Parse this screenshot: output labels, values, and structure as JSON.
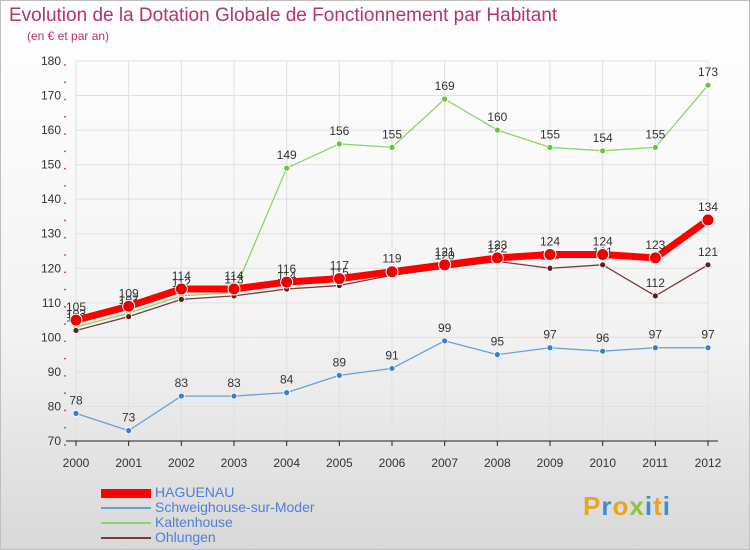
{
  "title": "Evolution de la Dotation Globale de Fonctionnement par Habitant",
  "subtitle": "(en € et par an)",
  "logo": {
    "text": "Proxiti",
    "colors": [
      "#e8a427",
      "#3f8fd0",
      "#e8a427",
      "#8cc63f",
      "#3f8fd0",
      "#e8a427",
      "#3f8fd0"
    ]
  },
  "colors": {
    "title": "#b5336e",
    "axis_text": "#333333",
    "grid": "#e0e0e0",
    "legend_text": "#4f7fd0"
  },
  "chart_data": {
    "type": "line",
    "title": "Evolution de la Dotation Globale de Fonctionnement par Habitant",
    "subtitle": "(en € et par an)",
    "x": [
      "2000",
      "2001",
      "2002",
      "2003",
      "2004",
      "2005",
      "2006",
      "2007",
      "2008",
      "2009",
      "2010",
      "2011",
      "2012"
    ],
    "yticks": [
      70,
      80,
      90,
      100,
      110,
      120,
      130,
      140,
      150,
      160,
      170,
      180
    ],
    "ylim": [
      70,
      180
    ],
    "grid": true,
    "legend_placement": "bottom-left",
    "series": [
      {
        "name": "Schweighouse-sur-Moder",
        "color": "#6a9fd4",
        "marker": "#3b7fc4",
        "width": 1.3,
        "r": 3,
        "values": [
          78,
          73,
          83,
          83,
          84,
          89,
          91,
          99,
          95,
          97,
          96,
          97,
          97
        ],
        "labels": [
          "78",
          "73",
          "83",
          "83",
          "84",
          "89",
          "91",
          "99",
          "95",
          "97",
          "96",
          "97",
          "97"
        ]
      },
      {
        "name": "Kaltenhouse",
        "color": "#8fd46a",
        "marker": "#6cc43b",
        "width": 1.3,
        "r": 3,
        "values": [
          103,
          107,
          112,
          113,
          149,
          156,
          155,
          169,
          160,
          155,
          154,
          155,
          173
        ],
        "labels": [
          "103",
          "107",
          "112",
          "113",
          "149",
          "156",
          "155",
          "169",
          "160",
          "155",
          "154",
          "155",
          "173"
        ]
      },
      {
        "name": "Ohlungen",
        "color": "#7a3a3a",
        "marker": "#5a1f1f",
        "width": 1.3,
        "r": 3,
        "values": [
          102,
          106,
          111,
          112,
          114,
          115,
          118,
          120,
          122,
          120,
          121,
          112,
          121
        ],
        "labels": [
          "102",
          "106",
          "",
          "",
          "114",
          "115",
          "",
          "120",
          "122",
          "120",
          "121",
          "112",
          "121"
        ]
      },
      {
        "name": "HAGUENAU",
        "color": "#ff0000",
        "marker": "#ee0000",
        "width": 7,
        "r": 6,
        "values": [
          105,
          109,
          114,
          114,
          116,
          117,
          119,
          121,
          123,
          124,
          124,
          123,
          134
        ],
        "labels": [
          "105",
          "109",
          "114",
          "114",
          "116",
          "117",
          "119",
          "121",
          "123",
          "124",
          "124",
          "123",
          "134"
        ]
      }
    ],
    "legend": [
      {
        "name": "HAGUENAU",
        "color": "#ff0000",
        "thickness": 9
      },
      {
        "name": "Schweighouse-sur-Moder",
        "color": "#6a9fd4",
        "thickness": 2
      },
      {
        "name": "Kaltenhouse",
        "color": "#8fd46a",
        "thickness": 2
      },
      {
        "name": "Ohlungen",
        "color": "#7a3a3a",
        "thickness": 2
      }
    ]
  }
}
